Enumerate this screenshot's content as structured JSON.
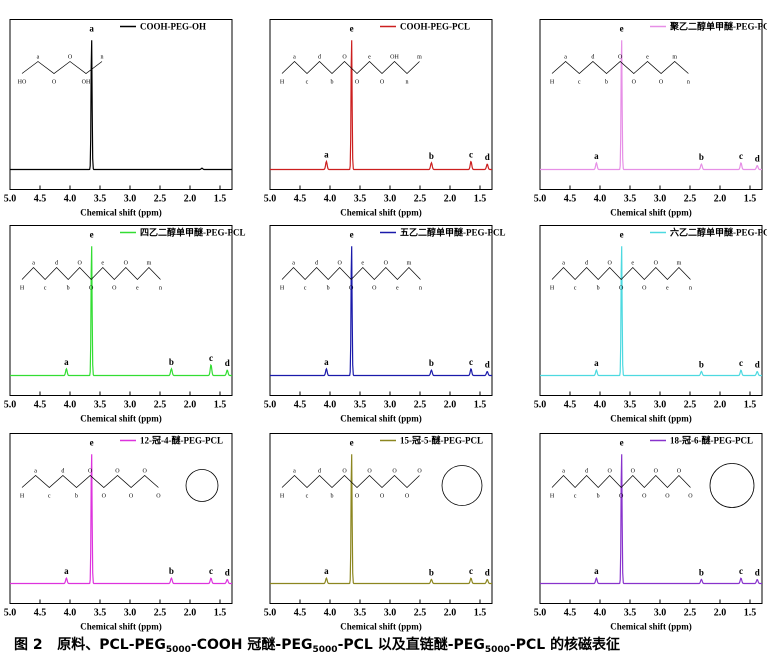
{
  "figure": {
    "caption": {
      "prefix": "图 2",
      "part1": "原料、PCL-PEG",
      "sub1": "5000",
      "part2": "-COOH 冠醚-PEG",
      "sub2": "5000",
      "part3": "-PCL 以及直链醚-PEG",
      "sub3": "5000",
      "part4": "-PCL 的核磁表征"
    }
  },
  "chart_data": [
    {
      "type": "line",
      "legend": "COOH-PEG-OH",
      "color": "#000000",
      "xlabel": "Chemical shift (ppm)",
      "xlim": [
        5.0,
        1.3
      ],
      "xticks": [
        "5.0",
        "4.5",
        "4.0",
        "3.5",
        "3.0",
        "2.5",
        "2.0",
        "1.5"
      ],
      "peaks": [
        {
          "label": "a",
          "x": 3.64,
          "height": 1.0
        },
        {
          "label": "",
          "x": 1.8,
          "height": 0.01
        }
      ],
      "structure": {
        "labels": [
          "HO",
          "a",
          "O",
          "O",
          "OH",
          "n"
        ]
      }
    },
    {
      "type": "line",
      "legend": "COOH-PEG-PCL",
      "color": "#cc1f1f",
      "xlabel": "Chemical shift (ppm)",
      "xlim": [
        5.0,
        1.3
      ],
      "xticks": [
        "5.0",
        "4.5",
        "4.0",
        "3.5",
        "3.0",
        "2.5",
        "2.0",
        "1.5"
      ],
      "peaks": [
        {
          "label": "e",
          "x": 3.64,
          "height": 1.0
        },
        {
          "label": "a",
          "x": 4.06,
          "height": 0.06
        },
        {
          "label": "b",
          "x": 2.31,
          "height": 0.05
        },
        {
          "label": "c",
          "x": 1.65,
          "height": 0.06
        },
        {
          "label": "d",
          "x": 1.38,
          "height": 0.04
        }
      ],
      "structure": {
        "labels": [
          "H",
          "a",
          "c",
          "d",
          "b",
          "O",
          "O",
          "e",
          "O",
          "OH",
          "n",
          "m"
        ]
      }
    },
    {
      "type": "line",
      "legend": "聚乙二醇单甲醚-PEG-PCL",
      "color": "#e68fe6",
      "xlabel": "Chemical shift (ppm)",
      "xlim": [
        5.0,
        1.3
      ],
      "xticks": [
        "5.0",
        "4.5",
        "4.0",
        "3.5",
        "3.0",
        "2.5",
        "2.0",
        "1.5"
      ],
      "peaks": [
        {
          "label": "e",
          "x": 3.64,
          "height": 1.0
        },
        {
          "label": "a",
          "x": 4.06,
          "height": 0.05
        },
        {
          "label": "b",
          "x": 2.31,
          "height": 0.04
        },
        {
          "label": "c",
          "x": 1.65,
          "height": 0.05
        },
        {
          "label": "d",
          "x": 1.38,
          "height": 0.03
        }
      ],
      "structure": {
        "labels": [
          "H",
          "a",
          "c",
          "d",
          "b",
          "O",
          "O",
          "e",
          "O",
          "m",
          "n"
        ]
      }
    },
    {
      "type": "line",
      "legend": "四乙二醇单甲醚-PEG-PCL",
      "color": "#33dd33",
      "xlabel": "Chemical shift (ppm)",
      "xlim": [
        5.0,
        1.3
      ],
      "xticks": [
        "5.0",
        "4.5",
        "4.0",
        "3.5",
        "3.0",
        "2.5",
        "2.0",
        "1.5"
      ],
      "peaks": [
        {
          "label": "e",
          "x": 3.64,
          "height": 1.0
        },
        {
          "label": "a",
          "x": 4.06,
          "height": 0.05
        },
        {
          "label": "b",
          "x": 2.31,
          "height": 0.05
        },
        {
          "label": "c",
          "x": 1.65,
          "height": 0.08
        },
        {
          "label": "d",
          "x": 1.38,
          "height": 0.04
        }
      ],
      "structure": {
        "labels": [
          "H",
          "a",
          "c",
          "d",
          "b",
          "O",
          "O",
          "e",
          "O",
          "O",
          "e",
          "m",
          "n"
        ]
      }
    },
    {
      "type": "line",
      "legend": "五乙二醇单甲醚-PEG-PCL",
      "color": "#1a1aaa",
      "xlabel": "Chemical shift (ppm)",
      "xlim": [
        5.0,
        1.3
      ],
      "xticks": [
        "5.0",
        "4.5",
        "4.0",
        "3.5",
        "3.0",
        "2.5",
        "2.0",
        "1.5"
      ],
      "peaks": [
        {
          "label": "e",
          "x": 3.64,
          "height": 1.0
        },
        {
          "label": "a",
          "x": 4.06,
          "height": 0.05
        },
        {
          "label": "b",
          "x": 2.31,
          "height": 0.04
        },
        {
          "label": "c",
          "x": 1.65,
          "height": 0.05
        },
        {
          "label": "d",
          "x": 1.38,
          "height": 0.03
        }
      ],
      "structure": {
        "labels": [
          "H",
          "a",
          "c",
          "d",
          "b",
          "O",
          "O",
          "e",
          "O",
          "O",
          "e",
          "m",
          "n"
        ]
      }
    },
    {
      "type": "line",
      "legend": "六乙二醇单甲醚-PEG-PCL",
      "color": "#4dd9e0",
      "xlabel": "Chemical shift (ppm)",
      "xlim": [
        5.0,
        1.3
      ],
      "xticks": [
        "5.0",
        "4.5",
        "4.0",
        "3.5",
        "3.0",
        "2.5",
        "2.0",
        "1.5"
      ],
      "peaks": [
        {
          "label": "e",
          "x": 3.64,
          "height": 1.0
        },
        {
          "label": "a",
          "x": 4.06,
          "height": 0.04
        },
        {
          "label": "b",
          "x": 2.31,
          "height": 0.03
        },
        {
          "label": "c",
          "x": 1.65,
          "height": 0.04
        },
        {
          "label": "d",
          "x": 1.38,
          "height": 0.03
        }
      ],
      "structure": {
        "labels": [
          "H",
          "a",
          "c",
          "d",
          "b",
          "O",
          "O",
          "e",
          "O",
          "O",
          "e",
          "m",
          "n"
        ]
      }
    },
    {
      "type": "line",
      "legend": "12-冠-4-醚-PEG-PCL",
      "color": "#dd33dd",
      "xlabel": "Chemical shift (ppm)",
      "xlim": [
        5.0,
        1.3
      ],
      "xticks": [
        "5.0",
        "4.5",
        "4.0",
        "3.5",
        "3.0",
        "2.5",
        "2.0",
        "1.5"
      ],
      "peaks": [
        {
          "label": "e",
          "x": 3.64,
          "height": 1.0
        },
        {
          "label": "a",
          "x": 4.06,
          "height": 0.04
        },
        {
          "label": "b",
          "x": 2.31,
          "height": 0.04
        },
        {
          "label": "c",
          "x": 1.65,
          "height": 0.04
        },
        {
          "label": "d",
          "x": 1.38,
          "height": 0.03
        }
      ],
      "structure": {
        "labels": [
          "H",
          "a",
          "c",
          "d",
          "b",
          "O",
          "O",
          "O",
          "O",
          "O",
          "O"
        ],
        "ring": "crown-4"
      }
    },
    {
      "type": "line",
      "legend": "15-冠-5-醚-PEG-PCL",
      "color": "#8c8620",
      "xlabel": "Chemical shift (ppm)",
      "xlim": [
        5.0,
        1.3
      ],
      "xticks": [
        "5.0",
        "4.5",
        "4.0",
        "3.5",
        "3.0",
        "2.5",
        "2.0",
        "1.5"
      ],
      "peaks": [
        {
          "label": "e",
          "x": 3.64,
          "height": 1.0
        },
        {
          "label": "a",
          "x": 4.06,
          "height": 0.04
        },
        {
          "label": "b",
          "x": 2.31,
          "height": 0.03
        },
        {
          "label": "c",
          "x": 1.65,
          "height": 0.04
        },
        {
          "label": "d",
          "x": 1.38,
          "height": 0.03
        }
      ],
      "structure": {
        "labels": [
          "H",
          "a",
          "c",
          "d",
          "b",
          "O",
          "O",
          "O",
          "O",
          "O",
          "O",
          "O"
        ],
        "ring": "crown-5"
      }
    },
    {
      "type": "line",
      "legend": "18-冠-6-醚-PEG-PCL",
      "color": "#8833cc",
      "xlabel": "Chemical shift (ppm)",
      "xlim": [
        5.0,
        1.3
      ],
      "xticks": [
        "5.0",
        "4.5",
        "4.0",
        "3.5",
        "3.0",
        "2.5",
        "2.0",
        "1.5"
      ],
      "peaks": [
        {
          "label": "e",
          "x": 3.64,
          "height": 1.0
        },
        {
          "label": "a",
          "x": 4.06,
          "height": 0.04
        },
        {
          "label": "b",
          "x": 2.31,
          "height": 0.03
        },
        {
          "label": "c",
          "x": 1.65,
          "height": 0.04
        },
        {
          "label": "d",
          "x": 1.38,
          "height": 0.03
        }
      ],
      "structure": {
        "labels": [
          "H",
          "a",
          "c",
          "d",
          "b",
          "O",
          "O",
          "O",
          "O",
          "O",
          "O",
          "O",
          "O"
        ],
        "ring": "crown-6"
      }
    }
  ]
}
